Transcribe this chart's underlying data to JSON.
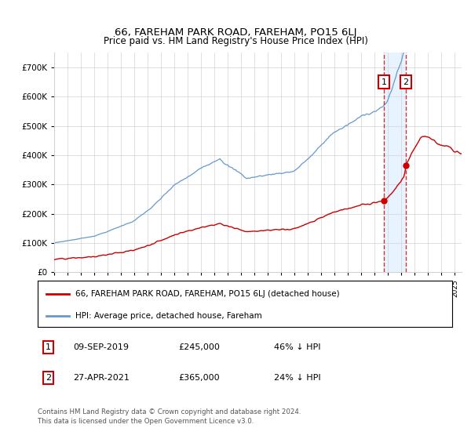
{
  "title": "66, FAREHAM PARK ROAD, FAREHAM, PO15 6LJ",
  "subtitle": "Price paid vs. HM Land Registry's House Price Index (HPI)",
  "legend_line1": "66, FAREHAM PARK ROAD, FAREHAM, PO15 6LJ (detached house)",
  "legend_line2": "HPI: Average price, detached house, Fareham",
  "annotation1_date": "09-SEP-2019",
  "annotation1_price": "£245,000",
  "annotation1_hpi": "46% ↓ HPI",
  "annotation2_date": "27-APR-2021",
  "annotation2_price": "£365,000",
  "annotation2_hpi": "24% ↓ HPI",
  "footer1": "Contains HM Land Registry data © Crown copyright and database right 2024.",
  "footer2": "This data is licensed under the Open Government Licence v3.0.",
  "sale1_year": 2019.69,
  "sale1_price": 245000,
  "sale2_year": 2021.32,
  "sale2_price": 365000,
  "red_color": "#cc0000",
  "blue_color": "#6699cc",
  "shade_color": "#ddeeff",
  "ylim_max": 750000,
  "ylim_min": 0,
  "xlim_min": 1995,
  "xlim_max": 2025.5
}
